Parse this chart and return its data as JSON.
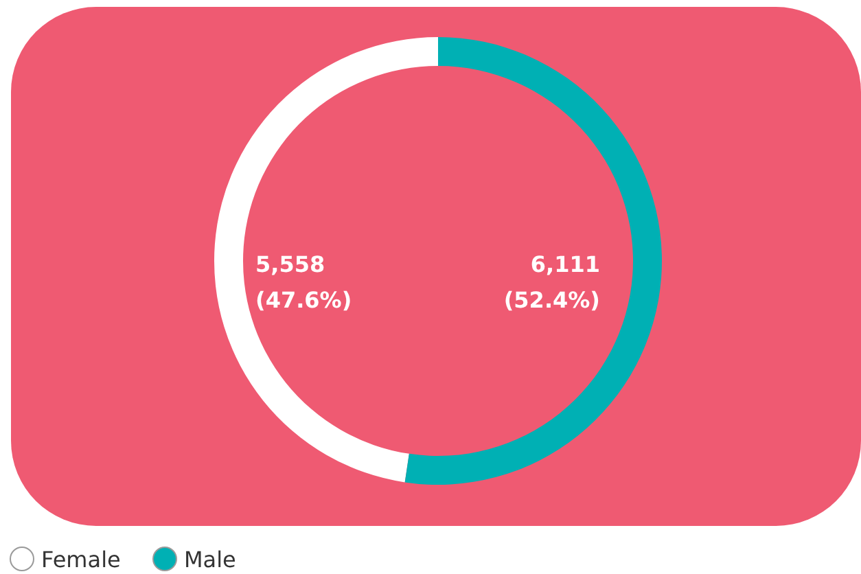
{
  "chart_data": {
    "type": "donut",
    "categories": [
      "Female",
      "Male"
    ],
    "values": [
      5558,
      6111
    ],
    "colors": [
      "#ffffff",
      "#00b0b4"
    ],
    "value_labels": [
      "5,558\n(47.6%)",
      "6,111\n(52.4%)"
    ],
    "legend": "bottom left"
  }
}
